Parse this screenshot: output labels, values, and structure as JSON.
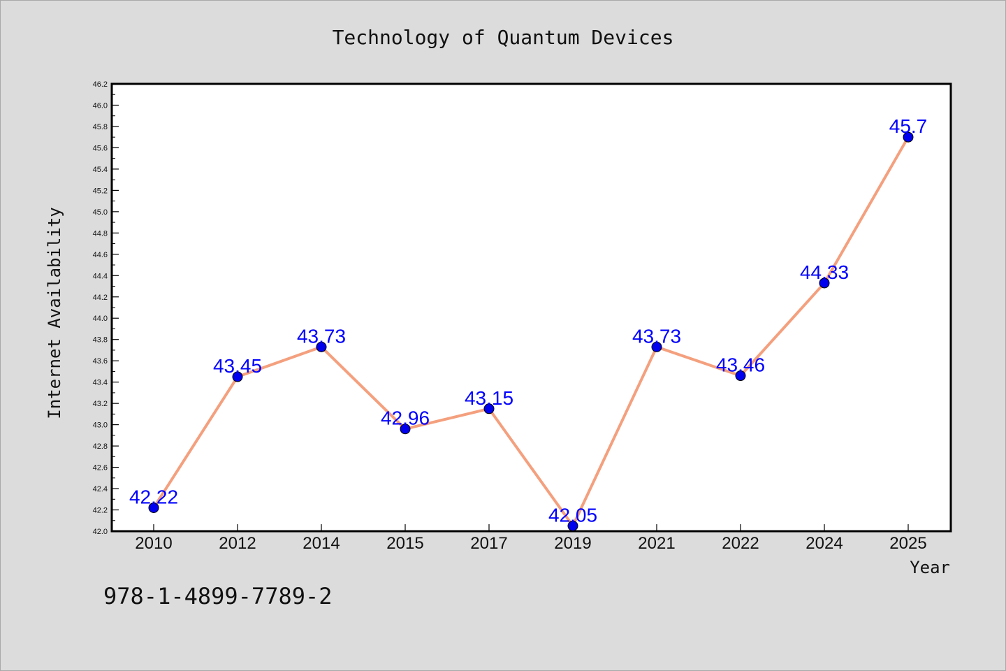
{
  "chart_data": {
    "type": "line",
    "title": "Technology of Quantum Devices",
    "xlabel": "Year",
    "ylabel": "Internet Availability",
    "categories": [
      "2010",
      "2012",
      "2014",
      "2015",
      "2017",
      "2019",
      "2021",
      "2022",
      "2024",
      "2025"
    ],
    "series": [
      {
        "values": [
          42.22,
          43.45,
          43.73,
          42.96,
          43.15,
          42.05,
          43.73,
          43.46,
          44.33,
          45.7
        ],
        "data_labels": [
          "42.22",
          "43.45",
          "43.73",
          "42.96",
          "43.15",
          "42.05",
          "43.73",
          "43.46",
          "44.33",
          "45.7"
        ],
        "line_color": "#f4a07e",
        "marker_color": "#0000ee",
        "label_color": "#0000ff"
      }
    ],
    "ylim": [
      42.0,
      46.2
    ],
    "yticks": [
      "42.0",
      "42.2",
      "42.4",
      "42.6",
      "42.8",
      "43.0",
      "43.2",
      "43.4",
      "43.6",
      "43.8",
      "44.0",
      "44.2",
      "44.4",
      "44.6",
      "44.8",
      "45.0",
      "45.2",
      "45.4",
      "45.6",
      "45.8",
      "46.0",
      "46.2"
    ],
    "grid": false,
    "legend": "none"
  },
  "footer": {
    "isbn": "978-1-4899-7789-2"
  },
  "colors": {
    "background": "#dcdcdc",
    "plot_background": "#ffffff",
    "axis": "#000000"
  }
}
